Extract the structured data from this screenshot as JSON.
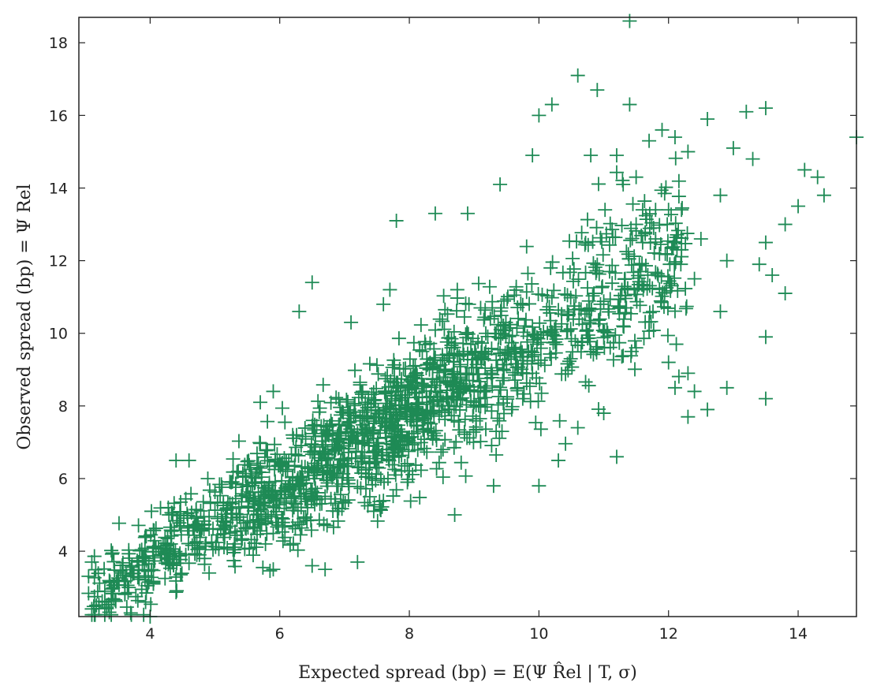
{
  "chart_data": {
    "type": "scatter",
    "title": "",
    "xlabel": "Expected spread (bp) = E(Ψ R̂el | T, σ)",
    "ylabel": "Observed spread (bp) = Ψ Rel",
    "xlim": [
      2.9,
      14.9
    ],
    "ylim": [
      2.2,
      18.7
    ],
    "xticks": [
      4,
      6,
      8,
      10,
      12,
      14
    ],
    "yticks": [
      4,
      6,
      8,
      10,
      12,
      14,
      16,
      18
    ],
    "grid": false,
    "marker": "plus",
    "color": "#1e8a55",
    "generated_cloud": {
      "count": 1750,
      "x_range": [
        3.1,
        12.3
      ],
      "slope": 1.02,
      "intercept": -0.35,
      "noise_sd": 0.85
    },
    "points": [
      [
        11.4,
        18.6
      ],
      [
        10.6,
        17.1
      ],
      [
        10.9,
        16.7
      ],
      [
        11.4,
        16.3
      ],
      [
        12.6,
        15.9
      ],
      [
        13.2,
        16.1
      ],
      [
        13.5,
        16.2
      ],
      [
        14.9,
        15.4
      ],
      [
        13.0,
        15.1
      ],
      [
        13.3,
        14.8
      ],
      [
        14.1,
        14.5
      ],
      [
        14.3,
        14.3
      ],
      [
        14.4,
        13.8
      ],
      [
        13.8,
        13.0
      ],
      [
        14.0,
        13.5
      ],
      [
        13.6,
        11.6
      ],
      [
        13.8,
        11.1
      ],
      [
        13.5,
        12.5
      ],
      [
        13.4,
        11.9
      ],
      [
        12.8,
        10.6
      ],
      [
        12.0,
        9.2
      ],
      [
        12.1,
        8.5
      ],
      [
        12.3,
        8.9
      ],
      [
        12.4,
        8.4
      ],
      [
        12.3,
        7.7
      ],
      [
        12.6,
        7.9
      ],
      [
        12.9,
        8.5
      ],
      [
        13.5,
        8.2
      ],
      [
        13.5,
        9.9
      ],
      [
        11.2,
        6.6
      ],
      [
        10.3,
        6.5
      ],
      [
        10.0,
        5.8
      ],
      [
        8.7,
        5.0
      ],
      [
        7.2,
        3.7
      ],
      [
        6.7,
        3.5
      ],
      [
        5.9,
        3.5
      ],
      [
        6.5,
        3.6
      ],
      [
        9.3,
        5.8
      ],
      [
        10.6,
        7.4
      ],
      [
        11.0,
        7.8
      ],
      [
        12.8,
        13.8
      ],
      [
        12.2,
        13.4
      ],
      [
        12.0,
        13.4
      ],
      [
        12.5,
        12.6
      ],
      [
        12.9,
        12.0
      ],
      [
        12.4,
        11.5
      ],
      [
        12.2,
        12.3
      ],
      [
        11.3,
        10.2
      ],
      [
        11.5,
        9.6
      ],
      [
        10.0,
        16.0
      ],
      [
        10.2,
        16.3
      ],
      [
        9.9,
        14.9
      ],
      [
        10.8,
        14.9
      ],
      [
        11.2,
        14.9
      ],
      [
        11.5,
        13.0
      ],
      [
        11.8,
        12.6
      ],
      [
        6.5,
        11.4
      ],
      [
        6.3,
        10.6
      ],
      [
        7.1,
        10.3
      ],
      [
        7.7,
        11.2
      ],
      [
        7.8,
        13.1
      ],
      [
        8.4,
        13.3
      ],
      [
        8.9,
        13.3
      ],
      [
        9.4,
        14.1
      ],
      [
        3.1,
        3.7
      ],
      [
        3.3,
        2.6
      ],
      [
        3.7,
        2.3
      ],
      [
        4.0,
        2.2
      ],
      [
        4.4,
        6.5
      ],
      [
        4.6,
        6.5
      ],
      [
        5.9,
        8.4
      ],
      [
        5.7,
        8.1
      ],
      [
        7.6,
        10.8
      ],
      [
        11.3,
        14.1
      ],
      [
        11.5,
        14.3
      ],
      [
        11.9,
        15.6
      ],
      [
        12.1,
        15.4
      ],
      [
        11.7,
        15.3
      ],
      [
        12.3,
        15.0
      ]
    ]
  }
}
